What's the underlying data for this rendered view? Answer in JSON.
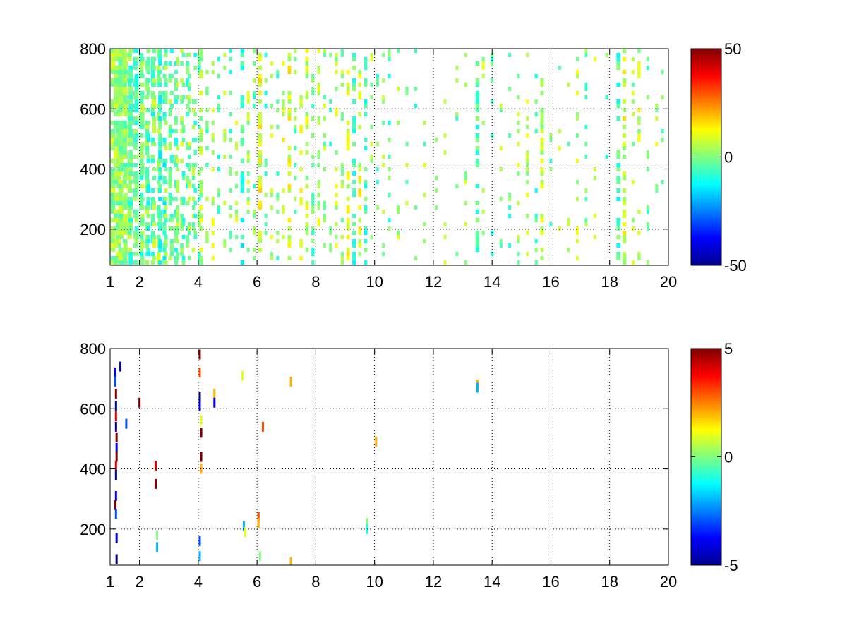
{
  "chart_data": [
    {
      "type": "heatmap",
      "title": "",
      "xlabel": "",
      "ylabel": "",
      "xlim": [
        1,
        20
      ],
      "ylim": [
        80,
        800
      ],
      "xticks": [
        1,
        2,
        4,
        6,
        8,
        10,
        12,
        14,
        16,
        18,
        20
      ],
      "xtick_labels": [
        "1",
        "2",
        "4",
        "6",
        "8",
        "10",
        "12",
        "14",
        "16",
        "18",
        "20"
      ],
      "yticks": [
        200,
        400,
        600,
        800
      ],
      "ytick_labels": [
        "200",
        "400",
        "600",
        "800"
      ],
      "grid": true,
      "colormap": "jet",
      "colorbar": {
        "range": [
          -50,
          50
        ],
        "ticks": [
          50,
          0,
          -50
        ],
        "tick_labels": [
          "50",
          "0",
          "-50"
        ]
      },
      "background": "#ffffff",
      "data_description_note": "",
      "columns": [
        {
          "x": 1.1,
          "density": 0.9,
          "mean": 3
        },
        {
          "x": 1.2,
          "density": 0.85,
          "mean": 2
        },
        {
          "x": 1.35,
          "density": 0.8,
          "mean": 2
        },
        {
          "x": 1.5,
          "density": 0.75,
          "mean": 0
        },
        {
          "x": 1.7,
          "density": 0.7,
          "mean": -3
        },
        {
          "x": 1.9,
          "density": 0.7,
          "mean": -4
        },
        {
          "x": 2.1,
          "density": 0.65,
          "mean": 1
        },
        {
          "x": 2.3,
          "density": 0.6,
          "mean": -6
        },
        {
          "x": 2.5,
          "density": 0.6,
          "mean": 2
        },
        {
          "x": 2.7,
          "density": 0.55,
          "mean": -8
        },
        {
          "x": 2.9,
          "density": 0.5,
          "mean": 0
        },
        {
          "x": 3.1,
          "density": 0.5,
          "mean": -5
        },
        {
          "x": 3.3,
          "density": 0.45,
          "mean": 3
        },
        {
          "x": 3.5,
          "density": 0.45,
          "mean": -4
        },
        {
          "x": 3.7,
          "density": 0.4,
          "mean": 1
        },
        {
          "x": 3.9,
          "density": 0.4,
          "mean": -6
        },
        {
          "x": 4.1,
          "density": 0.6,
          "mean": 4
        },
        {
          "x": 4.3,
          "density": 0.35,
          "mean": -2
        },
        {
          "x": 4.5,
          "density": 0.3,
          "mean": 5
        },
        {
          "x": 4.7,
          "density": 0.3,
          "mean": -5
        },
        {
          "x": 4.9,
          "density": 0.28,
          "mean": 3
        },
        {
          "x": 5.1,
          "density": 0.25,
          "mean": -3
        },
        {
          "x": 5.3,
          "density": 0.25,
          "mean": 4
        },
        {
          "x": 5.5,
          "density": 0.55,
          "mean": -8
        },
        {
          "x": 5.7,
          "density": 0.25,
          "mean": 4
        },
        {
          "x": 5.9,
          "density": 0.25,
          "mean": -2
        },
        {
          "x": 6.1,
          "density": 0.65,
          "mean": 10
        },
        {
          "x": 6.3,
          "density": 0.25,
          "mean": -4
        },
        {
          "x": 6.5,
          "density": 0.3,
          "mean": 6
        },
        {
          "x": 6.7,
          "density": 0.25,
          "mean": -3
        },
        {
          "x": 6.9,
          "density": 0.3,
          "mean": 7
        },
        {
          "x": 7.1,
          "density": 0.5,
          "mean": 9
        },
        {
          "x": 7.3,
          "density": 0.3,
          "mean": -2
        },
        {
          "x": 7.5,
          "density": 0.35,
          "mean": 8
        },
        {
          "x": 7.7,
          "density": 0.4,
          "mean": 6
        },
        {
          "x": 7.9,
          "density": 0.3,
          "mean": -4
        },
        {
          "x": 8.1,
          "density": 0.3,
          "mean": 6
        },
        {
          "x": 8.3,
          "density": 0.3,
          "mean": 2
        },
        {
          "x": 8.5,
          "density": 0.28,
          "mean": -3
        },
        {
          "x": 8.7,
          "density": 0.3,
          "mean": 5
        },
        {
          "x": 8.9,
          "density": 0.3,
          "mean": 3
        },
        {
          "x": 9.1,
          "density": 0.45,
          "mean": 8
        },
        {
          "x": 9.3,
          "density": 0.5,
          "mean": -5
        },
        {
          "x": 9.5,
          "density": 0.45,
          "mean": 9
        },
        {
          "x": 9.7,
          "density": 0.4,
          "mean": -7
        },
        {
          "x": 9.9,
          "density": 0.25,
          "mean": 3
        },
        {
          "x": 10.1,
          "density": 0.2,
          "mean": -3
        },
        {
          "x": 10.3,
          "density": 0.22,
          "mean": 4
        },
        {
          "x": 10.5,
          "density": 0.2,
          "mean": -4
        },
        {
          "x": 10.8,
          "density": 0.15,
          "mean": 3
        },
        {
          "x": 11.1,
          "density": 0.12,
          "mean": 0
        },
        {
          "x": 11.4,
          "density": 0.12,
          "mean": -3
        },
        {
          "x": 11.7,
          "density": 0.1,
          "mean": 2
        },
        {
          "x": 12.1,
          "density": 0.1,
          "mean": 4
        },
        {
          "x": 12.4,
          "density": 0.15,
          "mean": 6
        },
        {
          "x": 12.8,
          "density": 0.1,
          "mean": -3
        },
        {
          "x": 13.1,
          "density": 0.1,
          "mean": 3
        },
        {
          "x": 13.5,
          "density": 0.6,
          "mean": -5
        },
        {
          "x": 13.7,
          "density": 0.2,
          "mean": 4
        },
        {
          "x": 14.0,
          "density": 0.12,
          "mean": -4
        },
        {
          "x": 14.3,
          "density": 0.2,
          "mean": 2
        },
        {
          "x": 14.6,
          "density": 0.2,
          "mean": -4
        },
        {
          "x": 14.9,
          "density": 0.2,
          "mean": 3
        },
        {
          "x": 15.2,
          "density": 0.22,
          "mean": 5
        },
        {
          "x": 15.5,
          "density": 0.3,
          "mean": -4
        },
        {
          "x": 15.7,
          "density": 0.5,
          "mean": 5
        },
        {
          "x": 16.0,
          "density": 0.2,
          "mean": -3
        },
        {
          "x": 16.3,
          "density": 0.22,
          "mean": 4
        },
        {
          "x": 16.6,
          "density": 0.15,
          "mean": 0
        },
        {
          "x": 16.9,
          "density": 0.25,
          "mean": 5
        },
        {
          "x": 17.2,
          "density": 0.15,
          "mean": -2
        },
        {
          "x": 17.5,
          "density": 0.12,
          "mean": 3
        },
        {
          "x": 17.9,
          "density": 0.1,
          "mean": -4
        },
        {
          "x": 18.3,
          "density": 0.65,
          "mean": -6
        },
        {
          "x": 18.5,
          "density": 0.6,
          "mean": 8
        },
        {
          "x": 18.8,
          "density": 0.3,
          "mean": 3
        },
        {
          "x": 19.0,
          "density": 0.35,
          "mean": 6
        },
        {
          "x": 19.3,
          "density": 0.2,
          "mean": -3
        },
        {
          "x": 19.6,
          "density": 0.15,
          "mean": 4
        },
        {
          "x": 19.8,
          "density": 0.1,
          "mean": 1
        }
      ]
    },
    {
      "type": "heatmap",
      "title": "",
      "xlabel": "",
      "ylabel": "",
      "xlim": [
        1,
        20
      ],
      "ylim": [
        80,
        800
      ],
      "xticks": [
        1,
        2,
        4,
        6,
        8,
        10,
        12,
        14,
        16,
        18,
        20
      ],
      "xtick_labels": [
        "1",
        "2",
        "4",
        "6",
        "8",
        "10",
        "12",
        "14",
        "16",
        "18",
        "20"
      ],
      "yticks": [
        200,
        400,
        600,
        800
      ],
      "ytick_labels": [
        "200",
        "400",
        "600",
        "800"
      ],
      "grid": true,
      "colormap": "jet",
      "colorbar": {
        "range": [
          -5,
          5
        ],
        "ticks": [
          5,
          0,
          -5
        ],
        "tick_labels": [
          "5",
          "0",
          "-5"
        ]
      },
      "background": "#ffffff",
      "points": [
        {
          "x": 1.18,
          "y": 720,
          "v": -4
        },
        {
          "x": 1.18,
          "y": 690,
          "v": -3
        },
        {
          "x": 1.2,
          "y": 650,
          "v": 5
        },
        {
          "x": 1.2,
          "y": 610,
          "v": -5
        },
        {
          "x": 1.2,
          "y": 575,
          "v": 4
        },
        {
          "x": 1.2,
          "y": 540,
          "v": -5
        },
        {
          "x": 1.22,
          "y": 505,
          "v": 5
        },
        {
          "x": 1.22,
          "y": 470,
          "v": -4
        },
        {
          "x": 1.22,
          "y": 440,
          "v": 5
        },
        {
          "x": 1.2,
          "y": 410,
          "v": 4
        },
        {
          "x": 1.2,
          "y": 380,
          "v": -5
        },
        {
          "x": 1.2,
          "y": 310,
          "v": -4
        },
        {
          "x": 1.18,
          "y": 280,
          "v": 5
        },
        {
          "x": 1.2,
          "y": 250,
          "v": -3
        },
        {
          "x": 1.22,
          "y": 170,
          "v": -4
        },
        {
          "x": 1.22,
          "y": 100,
          "v": -5
        },
        {
          "x": 1.35,
          "y": 740,
          "v": -5
        },
        {
          "x": 1.55,
          "y": 550,
          "v": -3
        },
        {
          "x": 2.0,
          "y": 620,
          "v": 5
        },
        {
          "x": 2.55,
          "y": 410,
          "v": 4
        },
        {
          "x": 2.55,
          "y": 350,
          "v": 5
        },
        {
          "x": 2.6,
          "y": 180,
          "v": 0
        },
        {
          "x": 2.6,
          "y": 140,
          "v": -2
        },
        {
          "x": 4.05,
          "y": 780,
          "v": 5
        },
        {
          "x": 4.05,
          "y": 720,
          "v": 3
        },
        {
          "x": 4.05,
          "y": 640,
          "v": -5
        },
        {
          "x": 4.05,
          "y": 610,
          "v": -4
        },
        {
          "x": 4.1,
          "y": 560,
          "v": 1
        },
        {
          "x": 4.1,
          "y": 520,
          "v": 5
        },
        {
          "x": 4.1,
          "y": 440,
          "v": 5
        },
        {
          "x": 4.1,
          "y": 400,
          "v": 2
        },
        {
          "x": 4.05,
          "y": 160,
          "v": -3
        },
        {
          "x": 4.05,
          "y": 110,
          "v": -2
        },
        {
          "x": 4.55,
          "y": 650,
          "v": 2
        },
        {
          "x": 4.55,
          "y": 620,
          "v": -4
        },
        {
          "x": 5.5,
          "y": 710,
          "v": 1
        },
        {
          "x": 5.55,
          "y": 210,
          "v": -2
        },
        {
          "x": 5.6,
          "y": 190,
          "v": 1
        },
        {
          "x": 6.05,
          "y": 240,
          "v": 3
        },
        {
          "x": 6.05,
          "y": 220,
          "v": 2
        },
        {
          "x": 6.1,
          "y": 110,
          "v": 0
        },
        {
          "x": 6.2,
          "y": 540,
          "v": 3
        },
        {
          "x": 7.15,
          "y": 690,
          "v": 2
        },
        {
          "x": 7.15,
          "y": 90,
          "v": 2
        },
        {
          "x": 9.75,
          "y": 220,
          "v": 0
        },
        {
          "x": 9.75,
          "y": 200,
          "v": -1
        },
        {
          "x": 10.05,
          "y": 490,
          "v": 2
        },
        {
          "x": 13.5,
          "y": 680,
          "v": 2
        },
        {
          "x": 13.5,
          "y": 670,
          "v": -2
        }
      ]
    }
  ]
}
